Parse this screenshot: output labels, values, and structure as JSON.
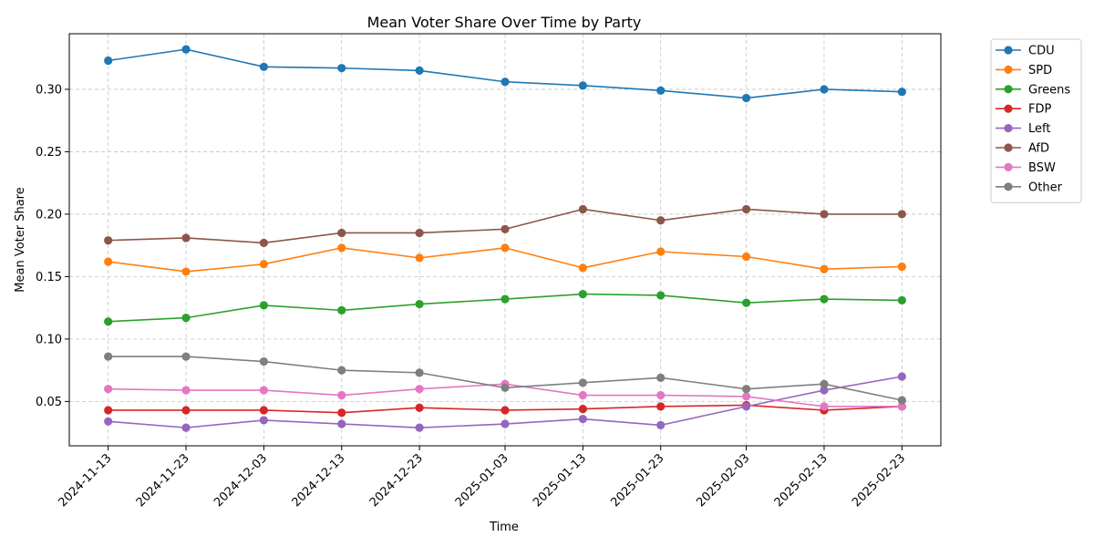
{
  "chart_data": {
    "type": "line",
    "title": "Mean Voter Share Over Time by Party",
    "xlabel": "Time",
    "ylabel": "Mean Voter Share",
    "x": [
      "2024-11-13",
      "2024-11-23",
      "2024-12-03",
      "2024-12-13",
      "2024-12-23",
      "2025-01-03",
      "2025-01-13",
      "2025-01-23",
      "2025-02-03",
      "2025-02-13",
      "2025-02-23"
    ],
    "yticks": [
      "0.05",
      "0.10",
      "0.15",
      "0.20",
      "0.25",
      "0.30"
    ],
    "ylim": [
      0.0145,
      0.3445
    ],
    "xlim": [
      "2024-11-08",
      "2025-02-28"
    ],
    "grid": true,
    "legend_position": "outside-top-right",
    "series": [
      {
        "name": "CDU",
        "color": "#1f77b4",
        "values": [
          0.323,
          0.332,
          0.318,
          0.317,
          0.315,
          0.306,
          0.303,
          0.299,
          0.293,
          0.3,
          0.298
        ]
      },
      {
        "name": "SPD",
        "color": "#ff7f0e",
        "values": [
          0.162,
          0.154,
          0.16,
          0.173,
          0.165,
          0.173,
          0.157,
          0.17,
          0.166,
          0.156,
          0.158
        ]
      },
      {
        "name": "Greens",
        "color": "#2ca02c",
        "values": [
          0.114,
          0.117,
          0.127,
          0.123,
          0.128,
          0.132,
          0.136,
          0.135,
          0.129,
          0.132,
          0.131
        ]
      },
      {
        "name": "FDP",
        "color": "#d62728",
        "values": [
          0.043,
          0.043,
          0.043,
          0.041,
          0.045,
          0.043,
          0.044,
          0.046,
          0.047,
          0.043,
          0.046
        ]
      },
      {
        "name": "Left",
        "color": "#9467bd",
        "values": [
          0.034,
          0.029,
          0.035,
          0.032,
          0.029,
          0.032,
          0.036,
          0.031,
          0.046,
          0.059,
          0.07
        ]
      },
      {
        "name": "AfD",
        "color": "#8c564b",
        "values": [
          0.179,
          0.181,
          0.177,
          0.185,
          0.185,
          0.188,
          0.204,
          0.195,
          0.204,
          0.2,
          0.2
        ]
      },
      {
        "name": "BSW",
        "color": "#e377c2",
        "values": [
          0.06,
          0.059,
          0.059,
          0.055,
          0.06,
          0.064,
          0.055,
          0.055,
          0.054,
          0.046,
          0.046
        ]
      },
      {
        "name": "Other",
        "color": "#7f7f7f",
        "values": [
          0.086,
          0.086,
          0.082,
          0.075,
          0.073,
          0.061,
          0.065,
          0.069,
          0.06,
          0.064,
          0.051
        ]
      }
    ]
  }
}
